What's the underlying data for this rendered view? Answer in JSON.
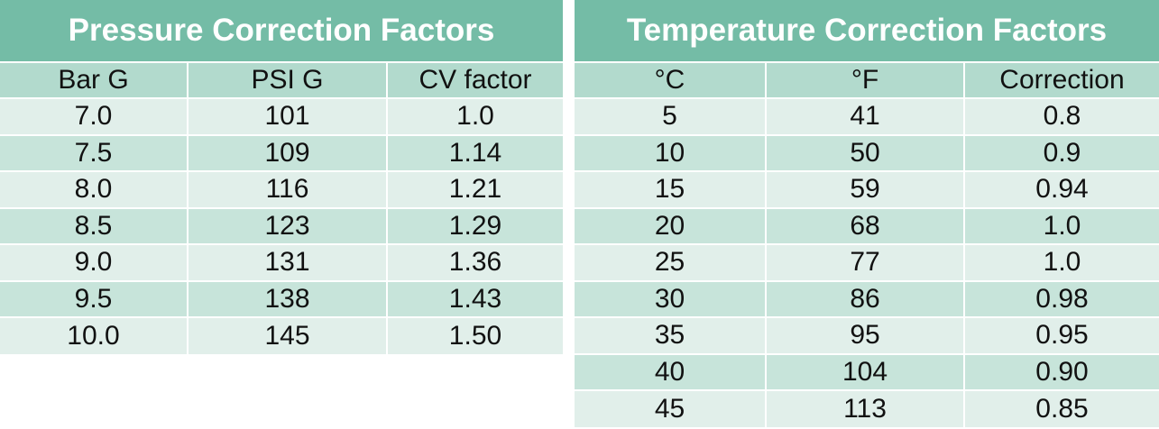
{
  "pressure": {
    "title": "Pressure Correction Factors",
    "columns": [
      "Bar G",
      "PSI G",
      "CV factor"
    ],
    "rows": [
      [
        "7.0",
        "101",
        "1.0"
      ],
      [
        "7.5",
        "109",
        "1.14"
      ],
      [
        "8.0",
        "116",
        "1.21"
      ],
      [
        "8.5",
        "123",
        "1.29"
      ],
      [
        "9.0",
        "131",
        "1.36"
      ],
      [
        "9.5",
        "138",
        "1.43"
      ],
      [
        "10.0",
        "145",
        "1.50"
      ]
    ]
  },
  "temperature": {
    "title": "Temperature Correction Factors",
    "columns": [
      "°C",
      "°F",
      "Correction"
    ],
    "rows": [
      [
        "5",
        "41",
        "0.8"
      ],
      [
        "10",
        "50",
        "0.9"
      ],
      [
        "15",
        "59",
        "0.94"
      ],
      [
        "20",
        "68",
        "1.0"
      ],
      [
        "25",
        "77",
        "1.0"
      ],
      [
        "30",
        "86",
        "0.98"
      ],
      [
        "35",
        "95",
        "0.95"
      ],
      [
        "40",
        "104",
        "0.90"
      ],
      [
        "45",
        "113",
        "0.85"
      ]
    ]
  },
  "colors": {
    "title_bg": "#74bca6",
    "header_bg": "#b2dacd",
    "row_light": "#e1efea",
    "row_dark": "#c7e4da"
  }
}
